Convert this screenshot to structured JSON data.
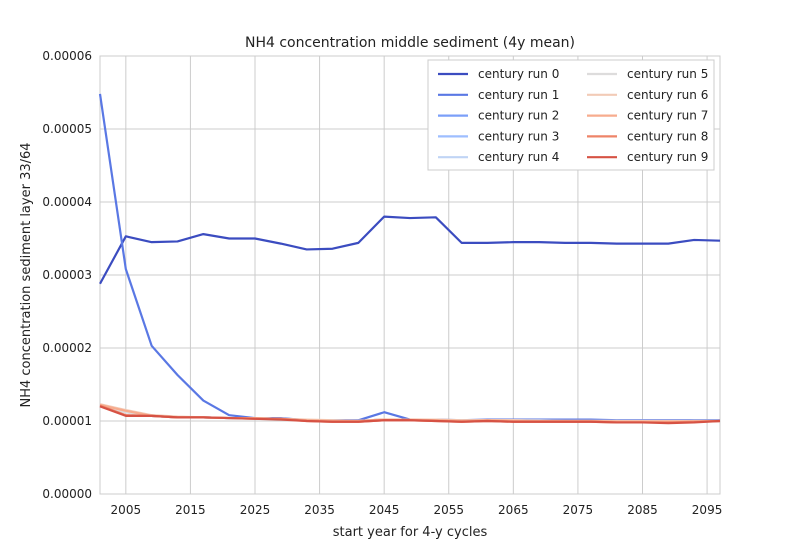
{
  "chart_data": {
    "type": "line",
    "title": "NH4 concentration middle sediment (4y mean)",
    "xlabel": "start year for 4-y cycles",
    "ylabel": "NH4 concentration sediment layer 33/64",
    "xlim": [
      2001,
      2097
    ],
    "ylim": [
      0,
      6e-05
    ],
    "xticks": [
      "2005",
      "2015",
      "2025",
      "2035",
      "2045",
      "2055",
      "2065",
      "2075",
      "2085",
      "2095"
    ],
    "xtick_values": [
      2005,
      2015,
      2025,
      2035,
      2045,
      2055,
      2065,
      2075,
      2085,
      2095
    ],
    "yticks": [
      "0.00000",
      "0.00001",
      "0.00002",
      "0.00003",
      "0.00004",
      "0.00005",
      "0.00006"
    ],
    "ytick_values": [
      0,
      1e-05,
      2e-05,
      3e-05,
      4e-05,
      5e-05,
      6e-05
    ],
    "grid": true,
    "legend_position": "top-right",
    "x": [
      2001,
      2005,
      2009,
      2013,
      2017,
      2021,
      2025,
      2029,
      2033,
      2037,
      2041,
      2045,
      2049,
      2053,
      2057,
      2061,
      2065,
      2069,
      2073,
      2077,
      2081,
      2085,
      2089,
      2093,
      2097
    ],
    "series": [
      {
        "name": "century run 0",
        "color": "#3b4cc0",
        "values": [
          2.88e-05,
          3.53e-05,
          3.45e-05,
          3.46e-05,
          3.56e-05,
          3.5e-05,
          3.5e-05,
          3.43e-05,
          3.35e-05,
          3.36e-05,
          3.44e-05,
          3.8e-05,
          3.78e-05,
          3.79e-05,
          3.44e-05,
          3.44e-05,
          3.45e-05,
          3.45e-05,
          3.44e-05,
          3.44e-05,
          3.43e-05,
          3.43e-05,
          3.43e-05,
          3.48e-05,
          3.47e-05
        ]
      },
      {
        "name": "century run 1",
        "color": "#5a78e4",
        "values": [
          5.48e-05,
          3.08e-05,
          2.03e-05,
          1.63e-05,
          1.28e-05,
          1.08e-05,
          1.04e-05,
          1.04e-05,
          1.01e-05,
          1.01e-05,
          1.01e-05,
          1.12e-05,
          1.02e-05,
          1.02e-05,
          1.01e-05,
          1.02e-05,
          1.02e-05,
          1.02e-05,
          1.02e-05,
          1.02e-05,
          1.01e-05,
          1.01e-05,
          1.01e-05,
          1.01e-05,
          1.01e-05
        ]
      },
      {
        "name": "century run 2",
        "color": "#7b9ff9",
        "values": [
          1.22e-05,
          1.13e-05,
          1.07e-05,
          1.05e-05,
          1.05e-05,
          1.04e-05,
          1.04e-05,
          1.03e-05,
          1.01e-05,
          1e-05,
          1e-05,
          1.02e-05,
          1.02e-05,
          1.01e-05,
          1e-05,
          1.01e-05,
          1.01e-05,
          1e-05,
          1e-05,
          1e-05,
          1e-05,
          1e-05,
          9.9e-06,
          1e-05,
          1e-05
        ]
      },
      {
        "name": "century run 3",
        "color": "#9ebeff",
        "values": [
          1.21e-05,
          1.12e-05,
          1.07e-05,
          1.05e-05,
          1.05e-05,
          1.04e-05,
          1.04e-05,
          1.03e-05,
          1.01e-05,
          1e-05,
          1e-05,
          1.02e-05,
          1.02e-05,
          1.01e-05,
          1e-05,
          1.01e-05,
          1.01e-05,
          1e-05,
          1e-05,
          1e-05,
          1e-05,
          1e-05,
          1e-05,
          1e-05,
          1e-05
        ]
      },
      {
        "name": "century run 4",
        "color": "#c0d4f5",
        "values": [
          1.22e-05,
          1.13e-05,
          1.07e-05,
          1.05e-05,
          1.05e-05,
          1.04e-05,
          1.04e-05,
          1.03e-05,
          1.01e-05,
          1.01e-05,
          1e-05,
          1.02e-05,
          1.02e-05,
          1.01e-05,
          1.01e-05,
          1.01e-05,
          1.01e-05,
          1.01e-05,
          1e-05,
          1e-05,
          1e-05,
          1e-05,
          1e-05,
          1e-05,
          1e-05
        ]
      },
      {
        "name": "century run 5",
        "color": "#dddcdc",
        "values": [
          1.21e-05,
          1.12e-05,
          1.07e-05,
          1.05e-05,
          1.05e-05,
          1.04e-05,
          1.04e-05,
          1.03e-05,
          1.01e-05,
          1e-05,
          1e-05,
          1.02e-05,
          1.02e-05,
          1.01e-05,
          1e-05,
          1.01e-05,
          1.01e-05,
          1e-05,
          1e-05,
          1e-05,
          1e-05,
          9.9e-06,
          9.9e-06,
          1e-05,
          1e-05
        ]
      },
      {
        "name": "century run 6",
        "color": "#f2cbb7",
        "values": [
          1.23e-05,
          1.15e-05,
          1.08e-05,
          1.06e-05,
          1.05e-05,
          1.04e-05,
          1.04e-05,
          1.03e-05,
          1.02e-05,
          1.01e-05,
          1e-05,
          1.02e-05,
          1.02e-05,
          1.02e-05,
          1.01e-05,
          1.01e-05,
          1.01e-05,
          1e-05,
          1e-05,
          1e-05,
          1e-05,
          1e-05,
          1e-05,
          1e-05,
          1e-05
        ]
      },
      {
        "name": "century run 7",
        "color": "#f7ac8e",
        "values": [
          1.22e-05,
          1.14e-05,
          1.07e-05,
          1.05e-05,
          1.05e-05,
          1.04e-05,
          1.04e-05,
          1.03e-05,
          1.01e-05,
          1e-05,
          1e-05,
          1.02e-05,
          1.02e-05,
          1.01e-05,
          1e-05,
          1.01e-05,
          1e-05,
          1e-05,
          1e-05,
          1e-05,
          9.9e-06,
          9.9e-06,
          9.9e-06,
          9.9e-06,
          1e-05
        ]
      },
      {
        "name": "century run 8",
        "color": "#ee8468",
        "values": [
          1.21e-05,
          1.08e-05,
          1.07e-05,
          1.05e-05,
          1.05e-05,
          1.04e-05,
          1.03e-05,
          1.03e-05,
          1e-05,
          9.9e-06,
          9.9e-06,
          1.01e-05,
          1.01e-05,
          1e-05,
          9.9e-06,
          1e-05,
          9.9e-06,
          9.9e-06,
          9.9e-06,
          9.9e-06,
          9.8e-06,
          9.8e-06,
          9.8e-06,
          9.9e-06,
          1e-05
        ]
      },
      {
        "name": "century run 9",
        "color": "#d65244",
        "values": [
          1.2e-05,
          1.07e-05,
          1.07e-05,
          1.05e-05,
          1.05e-05,
          1.04e-05,
          1.03e-05,
          1.02e-05,
          1e-05,
          9.9e-06,
          9.9e-06,
          1.01e-05,
          1.01e-05,
          1e-05,
          9.9e-06,
          1e-05,
          9.9e-06,
          9.9e-06,
          9.9e-06,
          9.9e-06,
          9.8e-06,
          9.8e-06,
          9.7e-06,
          9.8e-06,
          1e-05
        ]
      }
    ]
  }
}
